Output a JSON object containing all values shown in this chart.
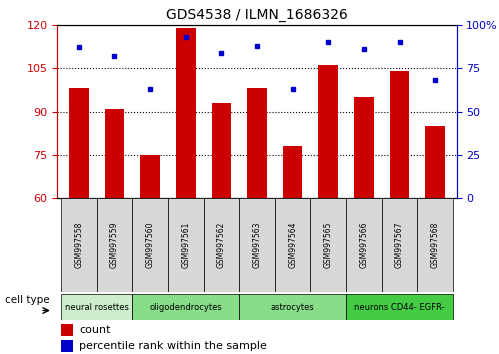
{
  "title": "GDS4538 / ILMN_1686326",
  "samples": [
    "GSM997558",
    "GSM997559",
    "GSM997560",
    "GSM997561",
    "GSM997562",
    "GSM997563",
    "GSM997564",
    "GSM997565",
    "GSM997566",
    "GSM997567",
    "GSM997568"
  ],
  "bar_heights": [
    98,
    91,
    75,
    119,
    93,
    98,
    78,
    106,
    95,
    104,
    85
  ],
  "bar_bottom": 60,
  "percentile_values": [
    87,
    82,
    63,
    93,
    84,
    88,
    63,
    90,
    86,
    90,
    68
  ],
  "ylim_left": [
    60,
    120
  ],
  "yticks_left": [
    60,
    75,
    90,
    105,
    120
  ],
  "ylim_right": [
    0,
    100
  ],
  "yticks_right": [
    0,
    25,
    50,
    75,
    100
  ],
  "bar_color": "#cc0000",
  "dot_color": "#0000cc",
  "cell_types": [
    {
      "label": "neural rosettes",
      "start": 0,
      "end": 2
    },
    {
      "label": "oligodendrocytes",
      "start": 2,
      "end": 5
    },
    {
      "label": "astrocytes",
      "start": 5,
      "end": 8
    },
    {
      "label": "neurons CD44- EGFR-",
      "start": 8,
      "end": 11
    }
  ],
  "cell_type_colors": [
    "#cceecc",
    "#88dd88",
    "#88dd88",
    "#44cc44"
  ],
  "legend_count_label": "count",
  "legend_pct_label": "percentile rank within the sample",
  "ylabel_left_color": "#cc0000",
  "ylabel_right_color": "#0000cc",
  "tick_label_bg": "#dddddd",
  "background_color": "#ffffff"
}
